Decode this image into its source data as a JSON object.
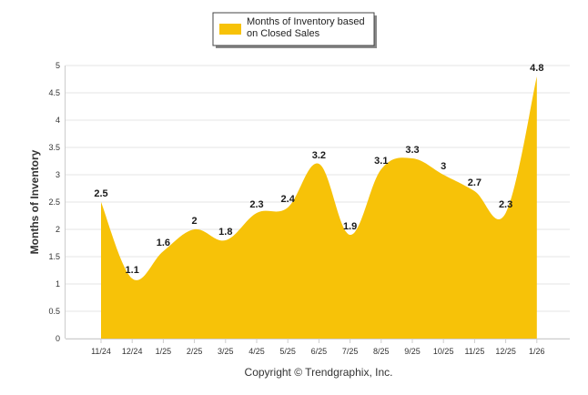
{
  "chart_data": {
    "type": "area",
    "title": "",
    "xlabel": "",
    "ylabel": "Months of Inventory",
    "ylim": [
      0,
      5
    ],
    "yticks": [
      "0",
      "0.5",
      "1",
      "1.5",
      "2",
      "2.5",
      "3",
      "3.5",
      "4",
      "4.5",
      "5"
    ],
    "ytick_values": [
      0,
      0.5,
      1,
      1.5,
      2,
      2.5,
      3,
      3.5,
      4,
      4.5,
      5
    ],
    "grid": true,
    "legend_position": "top-center",
    "series": [
      {
        "name": "Months of Inventory based on Closed Sales",
        "legend_lines": [
          "Months of Inventory based",
          "on Closed Sales"
        ],
        "color": "#f7c208",
        "values": [
          2.5,
          1.1,
          1.6,
          2,
          1.8,
          2.3,
          2.4,
          3.2,
          1.9,
          3.1,
          3.3,
          3,
          2.7,
          2.3,
          4.8
        ],
        "labels": [
          "2.5",
          "1.1",
          "1.6",
          "2",
          "1.8",
          "2.3",
          "2.4",
          "3.2",
          "1.9",
          "3.1",
          "3.3",
          "3",
          "2.7",
          "2.3",
          "4.8"
        ]
      }
    ],
    "categories": [
      "11/24",
      "12/24",
      "1/25",
      "2/25",
      "3/25",
      "4/25",
      "5/25",
      "6/25",
      "7/25",
      "8/25",
      "9/25",
      "10/25",
      "11/25",
      "12/25",
      "1/26"
    ]
  },
  "footer": {
    "copyright": "Copyright © Trendgraphix, Inc."
  },
  "colors": {
    "area": "#f7c208",
    "grid": "#e4e4e4",
    "axis": "#cccccc"
  }
}
